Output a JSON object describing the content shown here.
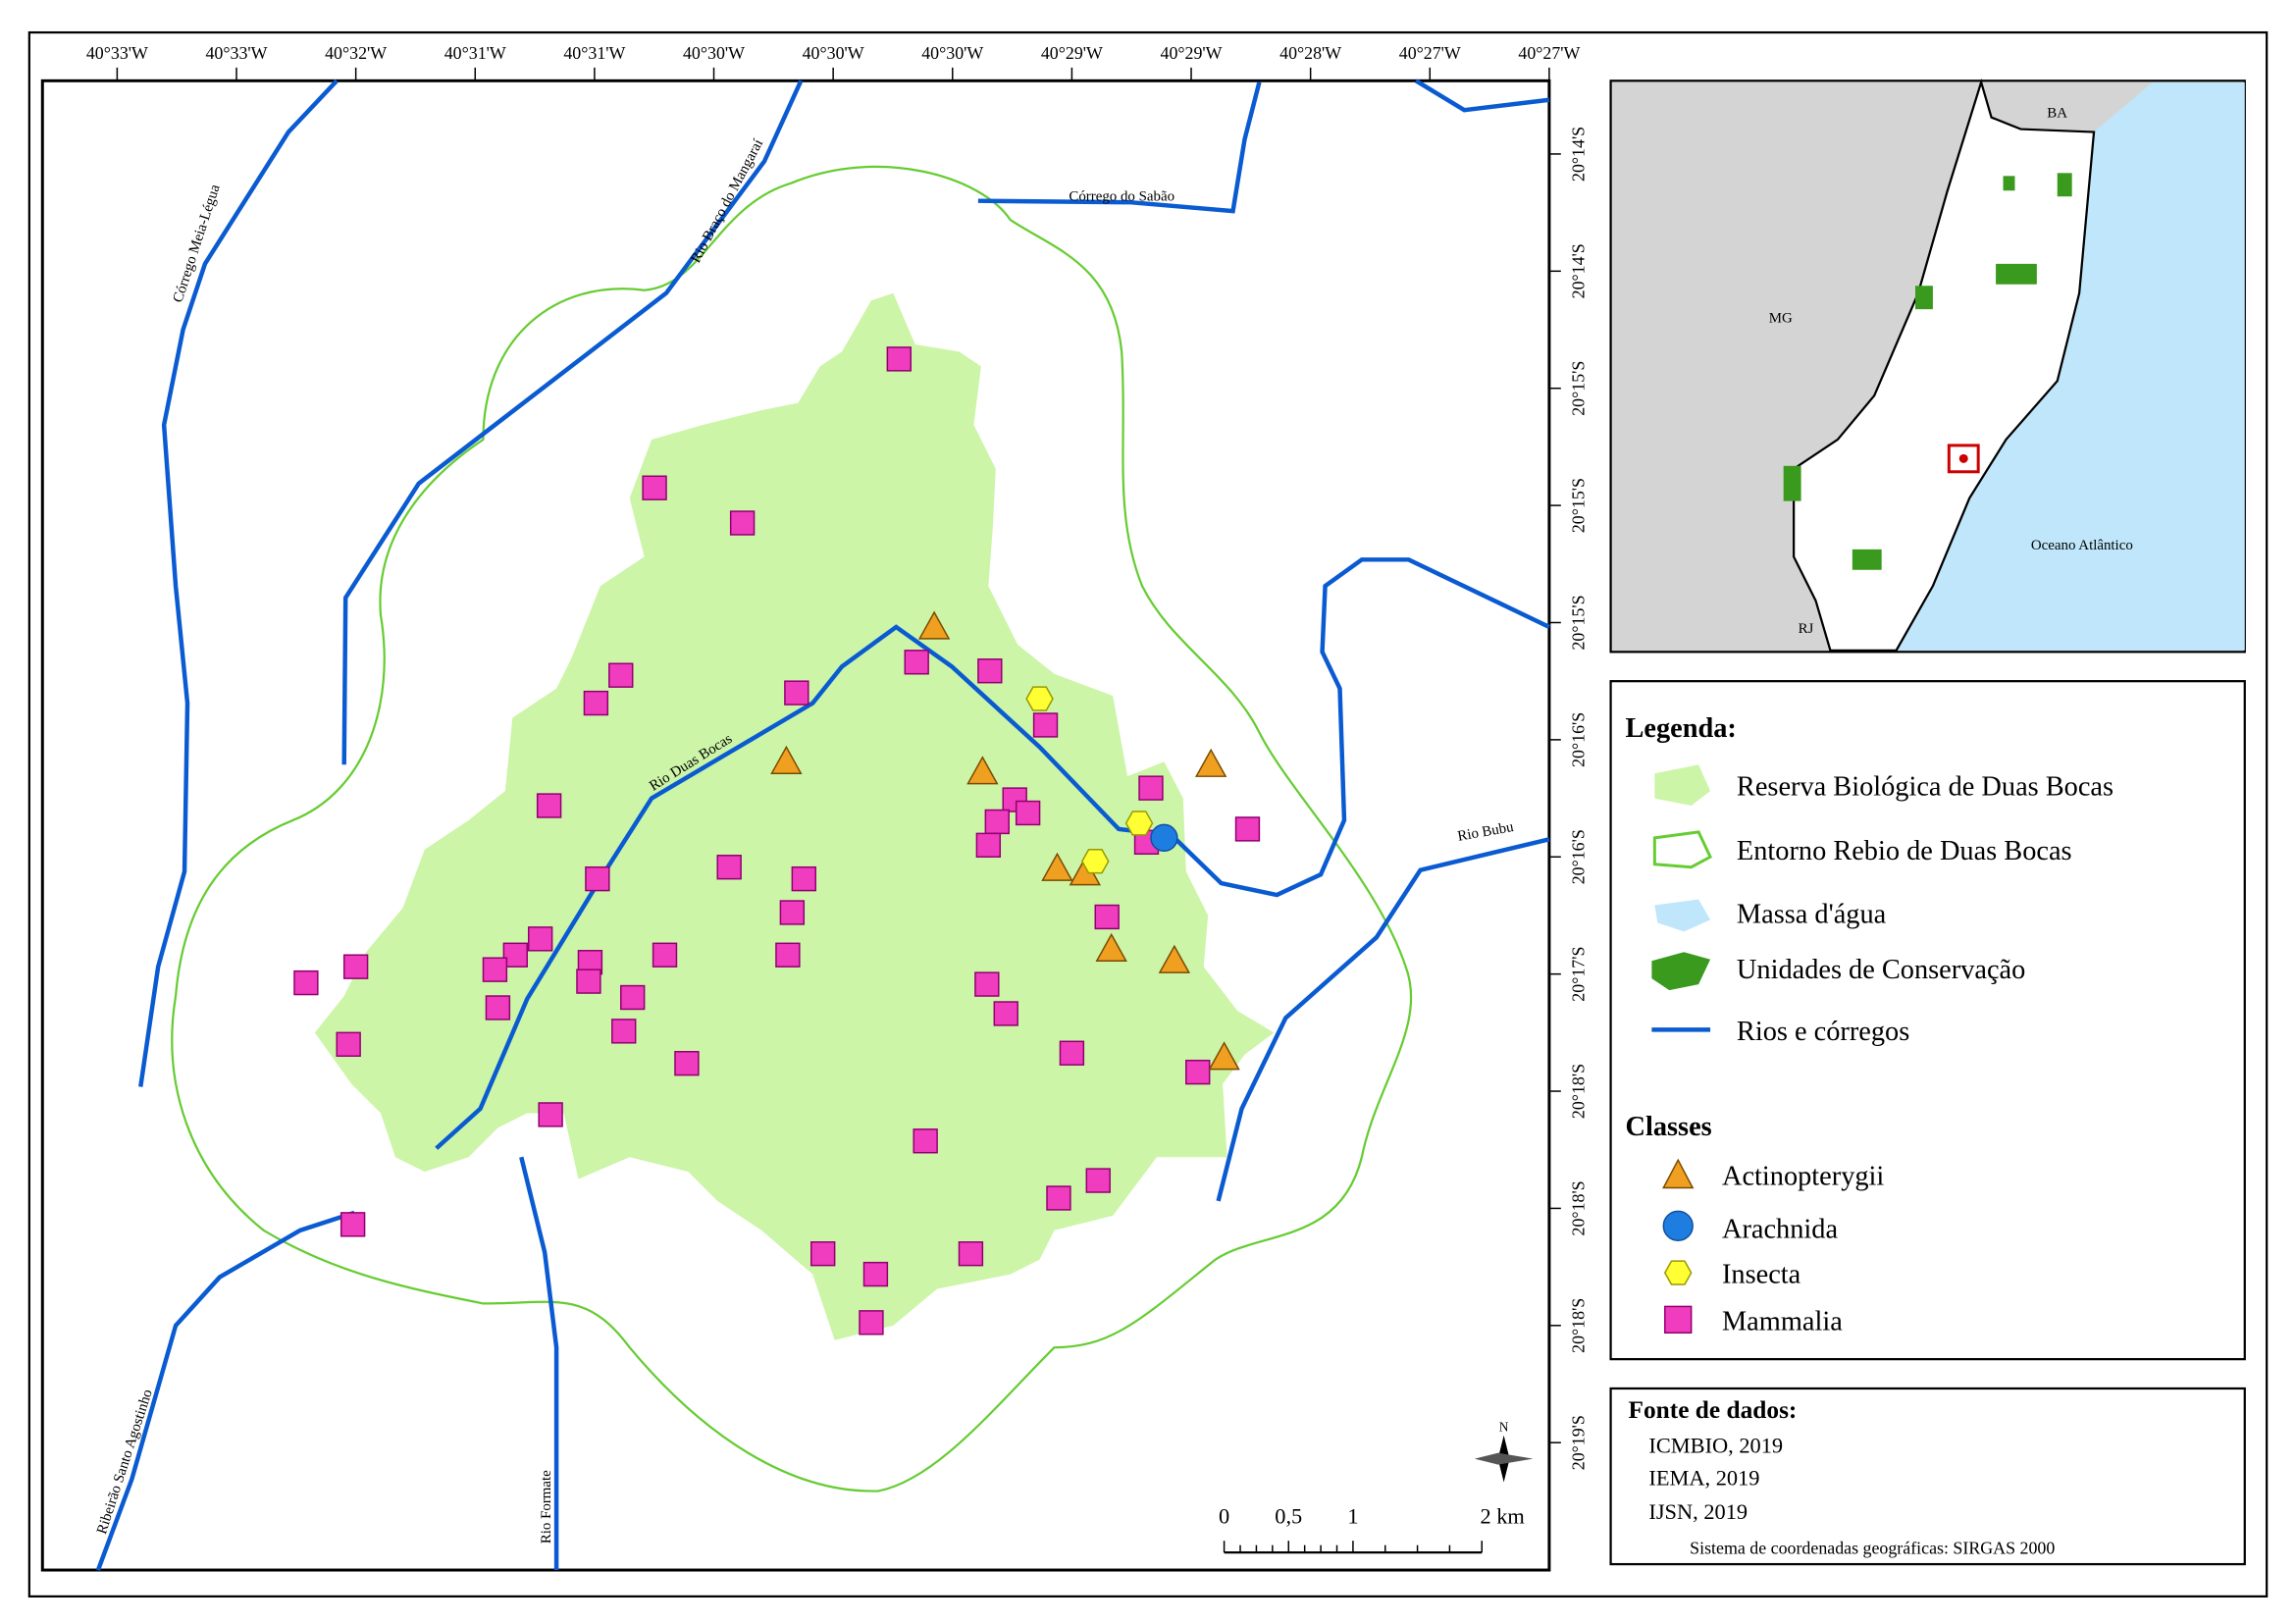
{
  "map": {
    "top_ticks": [
      "40°33'W",
      "40°33'W",
      "40°32'W",
      "40°31'W",
      "40°31'W",
      "40°30'W",
      "40°30'W",
      "40°30'W",
      "40°29'W",
      "40°29'W",
      "40°28'W",
      "40°27'W",
      "40°27'W"
    ],
    "right_ticks": [
      "20°14'S",
      "20°14'S",
      "20°15'S",
      "20°15'S",
      "20°15'S",
      "20°16'S",
      "20°16'S",
      "20°17'S",
      "20°18'S",
      "20°18'S",
      "20°18'S",
      "20°19'S"
    ],
    "rivers": [
      "Córrego Meia-Légua",
      "Rio Braço do Mangaraí",
      "Córrego do Sabão",
      "Rio Duas Bocas",
      "Rio Bubu",
      "Ribeirão Santo Agostinho",
      "Rio Formate"
    ],
    "inset": {
      "labels": [
        "BA",
        "MG",
        "RJ",
        "Oceano Atlântico"
      ]
    },
    "legend": {
      "title": "Legenda:",
      "items": [
        "Reserva Biológica de Duas Bocas",
        "Entorno Rebio de Duas Bocas",
        "Massa d'água",
        "Unidades de Conservação",
        "Rios e córregos"
      ],
      "classes_title": "Classes",
      "classes": [
        "Actinopterygii",
        "Arachnida",
        "Insecta",
        "Mammalia"
      ]
    },
    "sources": {
      "title": "Fonte de dados:",
      "items": [
        "ICMBIO, 2019",
        "IEMA, 2019",
        "IJSN, 2019"
      ],
      "crs": "Sistema de coordenadas geográficas: SIRGAS 2000"
    },
    "scale": {
      "labels": [
        "0",
        "0,5",
        "1",
        "2 km"
      ]
    },
    "north": "N"
  }
}
